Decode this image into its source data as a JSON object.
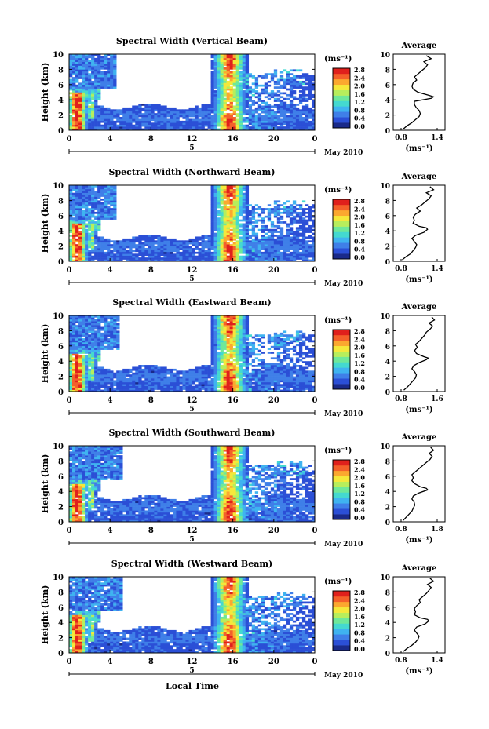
{
  "page": {
    "xlabel": "Local Time",
    "date_label": "May 2010",
    "day_label": "5"
  },
  "shared": {
    "time_ticks": [
      "0",
      "4",
      "8",
      "12",
      "16",
      "20",
      "0"
    ],
    "height_ticks": [
      "0",
      "2",
      "4",
      "6",
      "8",
      "10"
    ],
    "ylabel": "Height (km)",
    "colorbar_unit": "(ms⁻¹)",
    "colorbar_ticks": [
      "0.0",
      "0.4",
      "0.8",
      "1.2",
      "1.6",
      "2.0",
      "2.4",
      "2.8"
    ],
    "avg_title": "Average",
    "avg_unit": "(ms⁻¹)",
    "colormap": [
      "#1a2a8a",
      "#2b4fd6",
      "#3f7fe8",
      "#3fb3f0",
      "#44d9d0",
      "#6ee89a",
      "#b7ee5c",
      "#f5e83a",
      "#fba82f",
      "#f4602a",
      "#e0201c"
    ]
  },
  "panels": [
    {
      "title": "Spectral Width (Vertical Beam)",
      "avg_ticks": [
        "0.8",
        "1.4"
      ]
    },
    {
      "title": "Spectral Width (Northward Beam)",
      "avg_ticks": [
        "0.8",
        "1.4"
      ]
    },
    {
      "title": "Spectral Width (Eastward Beam)",
      "avg_ticks": [
        "0.8",
        "1.6"
      ]
    },
    {
      "title": "Spectral Width (Southward Beam)",
      "avg_ticks": [
        "0.8",
        "1.8"
      ]
    },
    {
      "title": "Spectral Width (Westward Beam)",
      "avg_ticks": [
        "0.8",
        "1.4"
      ]
    }
  ],
  "chart_data": {
    "type": "heatmap",
    "x_range_hours": [
      0,
      24
    ],
    "y_range_km": [
      0,
      10
    ],
    "color_range": [
      0.0,
      2.8
    ],
    "profile_heights_km": [
      0.2,
      0.6,
      1.0,
      1.4,
      1.8,
      2.2,
      2.6,
      3.0,
      3.4,
      3.8,
      4.2,
      4.4,
      4.6,
      5.0,
      5.4,
      5.8,
      6.2,
      6.6,
      7.0,
      7.4,
      7.8,
      8.2,
      8.6,
      9.0,
      9.4,
      9.8
    ],
    "profiles": [
      {
        "name": "Vertical",
        "x_range": [
          0.8,
          1.4
        ],
        "values": [
          0.84,
          0.9,
          0.98,
          1.04,
          1.1,
          1.12,
          1.1,
          1.05,
          1.02,
          1.02,
          1.3,
          1.34,
          1.26,
          1.08,
          1.0,
          0.98,
          1.0,
          1.06,
          1.02,
          1.08,
          1.14,
          1.2,
          1.24,
          1.18,
          1.3,
          1.22
        ]
      },
      {
        "name": "Northward",
        "x_range": [
          0.8,
          1.4
        ],
        "values": [
          0.82,
          0.88,
          0.96,
          1.0,
          1.04,
          1.06,
          1.02,
          0.98,
          1.04,
          1.18,
          1.24,
          1.22,
          1.1,
          1.0,
          1.02,
          1.0,
          1.04,
          1.12,
          1.06,
          1.14,
          1.2,
          1.26,
          1.3,
          1.22,
          1.34,
          1.28
        ]
      },
      {
        "name": "Eastward",
        "x_range": [
          0.8,
          1.6
        ],
        "values": [
          0.86,
          0.94,
          1.0,
          1.06,
          1.12,
          1.14,
          1.1,
          1.04,
          1.08,
          1.2,
          1.36,
          1.4,
          1.3,
          1.14,
          1.1,
          1.16,
          1.12,
          1.2,
          1.26,
          1.32,
          1.36,
          1.44,
          1.5,
          1.42,
          1.54,
          1.48
        ]
      },
      {
        "name": "Southward",
        "x_range": [
          0.8,
          1.8
        ],
        "values": [
          0.86,
          0.94,
          1.02,
          1.1,
          1.14,
          1.18,
          1.16,
          1.1,
          1.14,
          1.3,
          1.54,
          1.5,
          1.34,
          1.18,
          1.1,
          1.14,
          1.1,
          1.2,
          1.3,
          1.4,
          1.5,
          1.6,
          1.66,
          1.58,
          1.7,
          1.62
        ]
      },
      {
        "name": "Westward",
        "x_range": [
          0.8,
          1.4
        ],
        "values": [
          0.84,
          0.9,
          0.98,
          1.04,
          1.08,
          1.1,
          1.06,
          1.02,
          1.06,
          1.2,
          1.26,
          1.24,
          1.12,
          1.02,
          1.04,
          1.02,
          1.06,
          1.12,
          1.1,
          1.16,
          1.22,
          1.26,
          1.3,
          1.24,
          1.34,
          1.28
        ]
      }
    ]
  }
}
